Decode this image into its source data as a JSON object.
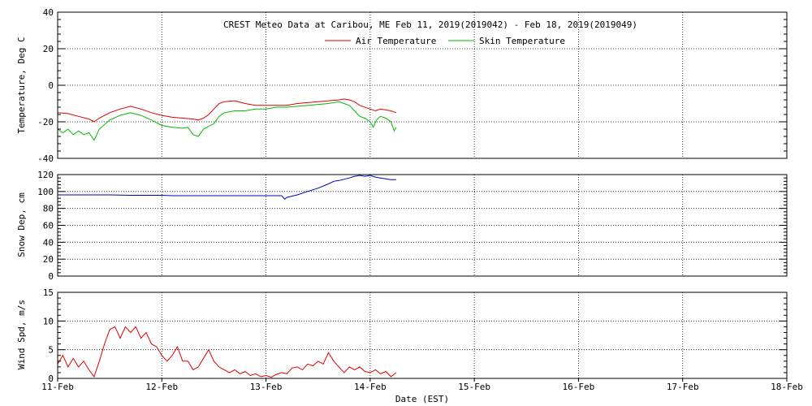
{
  "chart_data": {
    "type": "line",
    "title": "CREST Meteo Data at Caribou, ME   Feb 11, 2019(2019042) - Feb 18, 2019(2019049)",
    "xlabel": "Date (EST)",
    "x_tick_labels": [
      "11-Feb",
      "12-Feb",
      "13-Feb",
      "14-Feb",
      "15-Feb",
      "16-Feb",
      "17-Feb",
      "18-Feb"
    ],
    "xlim": [
      11,
      18
    ],
    "grid": true,
    "panels": [
      {
        "name": "temperature",
        "ylabel": "Temperature, Deg C",
        "ylim": [
          -40,
          40
        ],
        "y_ticks": [
          -40,
          -20,
          0,
          20,
          40
        ],
        "legend_position": "top-center",
        "series": [
          {
            "name": "Air Temperature",
            "color": "#dd0000",
            "points": [
              [
                11.0,
                -15
              ],
              [
                11.1,
                -15.5
              ],
              [
                11.2,
                -17
              ],
              [
                11.3,
                -18.5
              ],
              [
                11.35,
                -20
              ],
              [
                11.4,
                -18
              ],
              [
                11.5,
                -15
              ],
              [
                11.6,
                -13
              ],
              [
                11.7,
                -11.5
              ],
              [
                11.8,
                -13
              ],
              [
                11.9,
                -15
              ],
              [
                12.0,
                -16.5
              ],
              [
                12.1,
                -17.5
              ],
              [
                12.2,
                -18
              ],
              [
                12.3,
                -18.5
              ],
              [
                12.35,
                -19
              ],
              [
                12.4,
                -18
              ],
              [
                12.45,
                -16
              ],
              [
                12.5,
                -13
              ],
              [
                12.55,
                -10
              ],
              [
                12.6,
                -9
              ],
              [
                12.7,
                -8.5
              ],
              [
                12.8,
                -10
              ],
              [
                12.9,
                -11
              ],
              [
                13.0,
                -11
              ],
              [
                13.1,
                -11
              ],
              [
                13.2,
                -11
              ],
              [
                13.3,
                -10
              ],
              [
                13.4,
                -9.5
              ],
              [
                13.5,
                -9
              ],
              [
                13.6,
                -8.5
              ],
              [
                13.7,
                -8
              ],
              [
                13.75,
                -7.5
              ],
              [
                13.8,
                -8
              ],
              [
                13.85,
                -9
              ],
              [
                13.9,
                -11
              ],
              [
                14.0,
                -13
              ],
              [
                14.05,
                -14
              ],
              [
                14.1,
                -13
              ],
              [
                14.15,
                -13.5
              ],
              [
                14.2,
                -14
              ],
              [
                14.25,
                -15
              ]
            ]
          },
          {
            "name": "Skin Temperature",
            "color": "#00bb00",
            "points": [
              [
                11.0,
                -24
              ],
              [
                11.05,
                -26
              ],
              [
                11.1,
                -24
              ],
              [
                11.15,
                -27
              ],
              [
                11.2,
                -25
              ],
              [
                11.25,
                -27
              ],
              [
                11.3,
                -26
              ],
              [
                11.35,
                -30
              ],
              [
                11.4,
                -24
              ],
              [
                11.5,
                -19
              ],
              [
                11.6,
                -16.5
              ],
              [
                11.7,
                -15
              ],
              [
                11.8,
                -16.5
              ],
              [
                11.9,
                -19
              ],
              [
                12.0,
                -22
              ],
              [
                12.1,
                -23
              ],
              [
                12.2,
                -23.5
              ],
              [
                12.25,
                -23
              ],
              [
                12.3,
                -27
              ],
              [
                12.35,
                -28
              ],
              [
                12.4,
                -24
              ],
              [
                12.5,
                -21
              ],
              [
                12.55,
                -17
              ],
              [
                12.6,
                -15
              ],
              [
                12.7,
                -14
              ],
              [
                12.8,
                -14
              ],
              [
                12.9,
                -13
              ],
              [
                13.0,
                -13
              ],
              [
                13.1,
                -12
              ],
              [
                13.2,
                -12
              ],
              [
                13.3,
                -11.5
              ],
              [
                13.4,
                -11
              ],
              [
                13.5,
                -10.5
              ],
              [
                13.6,
                -10
              ],
              [
                13.7,
                -9
              ],
              [
                13.75,
                -10
              ],
              [
                13.8,
                -11
              ],
              [
                13.85,
                -14
              ],
              [
                13.9,
                -17
              ],
              [
                13.95,
                -18
              ],
              [
                14.0,
                -20
              ],
              [
                14.03,
                -23
              ],
              [
                14.06,
                -19
              ],
              [
                14.1,
                -17
              ],
              [
                14.15,
                -18
              ],
              [
                14.2,
                -20
              ],
              [
                14.23,
                -25
              ],
              [
                14.25,
                -23
              ]
            ]
          }
        ]
      },
      {
        "name": "snow-depth",
        "ylabel": "Snow Dep, cm",
        "ylim": [
          0,
          120
        ],
        "y_ticks": [
          0,
          20,
          40,
          60,
          80,
          100,
          120
        ],
        "series": [
          {
            "name": "Snow Depth",
            "color": "#0000bb",
            "points": [
              [
                11.0,
                96
              ],
              [
                11.5,
                96
              ],
              [
                11.7,
                95.5
              ],
              [
                11.9,
                95.5
              ],
              [
                12.0,
                95.5
              ],
              [
                12.1,
                95
              ],
              [
                12.3,
                95
              ],
              [
                12.6,
                95
              ],
              [
                12.9,
                95
              ],
              [
                13.1,
                95
              ],
              [
                13.15,
                95
              ],
              [
                13.18,
                91
              ],
              [
                13.2,
                93
              ],
              [
                13.3,
                96
              ],
              [
                13.4,
                100
              ],
              [
                13.5,
                104
              ],
              [
                13.6,
                109
              ],
              [
                13.65,
                112
              ],
              [
                13.7,
                113
              ],
              [
                13.8,
                116
              ],
              [
                13.85,
                118
              ],
              [
                13.9,
                119
              ],
              [
                13.95,
                118
              ],
              [
                14.0,
                119
              ],
              [
                14.05,
                117
              ],
              [
                14.1,
                116
              ],
              [
                14.15,
                115
              ],
              [
                14.2,
                114
              ],
              [
                14.25,
                114
              ]
            ]
          }
        ]
      },
      {
        "name": "wind-speed",
        "ylabel": "Wind Spd, m/s",
        "ylim": [
          0,
          15
        ],
        "y_ticks": [
          0,
          5,
          10,
          15
        ],
        "series": [
          {
            "name": "Wind Speed",
            "color": "#dd0000",
            "points": [
              [
                11.0,
                2.5
              ],
              [
                11.05,
                4
              ],
              [
                11.1,
                2
              ],
              [
                11.15,
                3.5
              ],
              [
                11.2,
                2
              ],
              [
                11.25,
                3
              ],
              [
                11.3,
                1.5
              ],
              [
                11.35,
                0.3
              ],
              [
                11.4,
                3
              ],
              [
                11.45,
                6
              ],
              [
                11.5,
                8.5
              ],
              [
                11.55,
                9
              ],
              [
                11.6,
                7
              ],
              [
                11.65,
                9
              ],
              [
                11.7,
                8
              ],
              [
                11.75,
                9
              ],
              [
                11.8,
                7
              ],
              [
                11.85,
                8
              ],
              [
                11.9,
                6
              ],
              [
                11.95,
                5.5
              ],
              [
                12.0,
                4
              ],
              [
                12.05,
                3
              ],
              [
                12.1,
                4
              ],
              [
                12.15,
                5.5
              ],
              [
                12.2,
                3
              ],
              [
                12.25,
                3
              ],
              [
                12.3,
                1.5
              ],
              [
                12.35,
                2
              ],
              [
                12.4,
                3.5
              ],
              [
                12.45,
                5
              ],
              [
                12.5,
                3
              ],
              [
                12.55,
                2
              ],
              [
                12.6,
                1.5
              ],
              [
                12.65,
                1
              ],
              [
                12.7,
                1.5
              ],
              [
                12.75,
                0.8
              ],
              [
                12.8,
                1.2
              ],
              [
                12.85,
                0.5
              ],
              [
                12.9,
                0.8
              ],
              [
                12.95,
                0.3
              ],
              [
                13.0,
                0.5
              ],
              [
                13.05,
                0.2
              ],
              [
                13.1,
                0.7
              ],
              [
                13.15,
                1
              ],
              [
                13.2,
                0.8
              ],
              [
                13.25,
                1.8
              ],
              [
                13.3,
                2
              ],
              [
                13.35,
                1.5
              ],
              [
                13.4,
                2.5
              ],
              [
                13.45,
                2.2
              ],
              [
                13.5,
                3
              ],
              [
                13.55,
                2.5
              ],
              [
                13.6,
                4.5
              ],
              [
                13.65,
                3
              ],
              [
                13.7,
                2
              ],
              [
                13.75,
                1
              ],
              [
                13.8,
                2
              ],
              [
                13.85,
                1.5
              ],
              [
                13.9,
                2
              ],
              [
                13.95,
                1.2
              ],
              [
                14.0,
                1
              ],
              [
                14.05,
                1.5
              ],
              [
                14.1,
                0.8
              ],
              [
                14.15,
                1.2
              ],
              [
                14.2,
                0.3
              ],
              [
                14.25,
                1
              ]
            ]
          }
        ]
      }
    ]
  }
}
